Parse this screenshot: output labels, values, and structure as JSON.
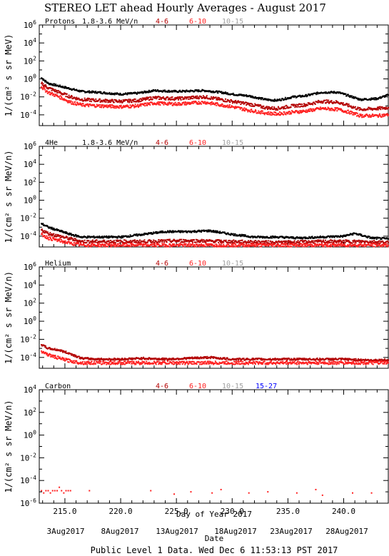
{
  "figure": {
    "title": "STEREO LET ahead Hourly Averages - August 2017",
    "x_axis_label": "Day of Year 2017",
    "date_axis_label": "Date",
    "date_ticks": [
      "3Aug2017",
      "8Aug2017",
      "13Aug2017",
      "18Aug2017",
      "23Aug2017",
      "28Aug2017"
    ],
    "footer": "Public Level 1 Data. Wed Dec  6 11:53:13 PST 2017"
  },
  "colors": {
    "c1": "#000000",
    "c2": "#b30000",
    "c3": "#ff2020",
    "c4": "#a0a0a0",
    "c5": "#0000ff"
  },
  "chart_data": [
    {
      "type": "scatter",
      "panel_label": "Protons",
      "ylabel": "1/(cm² s sr MeV)",
      "xlim": [
        212.7,
        244.0
      ],
      "ylim_log10": [
        -5.2,
        6
      ],
      "y_scale": "log",
      "x_ticks": [
        "215.0",
        "220.0",
        "225.0",
        "230.0",
        "235.0",
        "240.0"
      ],
      "y_ticks": [
        {
          "base": "10",
          "exp": "6"
        },
        {
          "base": "10",
          "exp": "4"
        },
        {
          "base": "10",
          "exp": "2"
        },
        {
          "base": "10",
          "exp": "0"
        },
        {
          "base": "10",
          "exp": "-2"
        },
        {
          "base": "10",
          "exp": "-4"
        }
      ],
      "series": [
        {
          "name": "1.8-3.6 MeV/n",
          "color": "#000000",
          "x": [
            212.9,
            213.5,
            214.5,
            215.5,
            216.5,
            218,
            220,
            221.5,
            223,
            225,
            227.5,
            229,
            230,
            231.5,
            233,
            234,
            235.5,
            236.5,
            238,
            239.5,
            240.5,
            241.5,
            243,
            244
          ],
          "log10y": [
            0.1,
            -0.5,
            -0.8,
            -1.1,
            -1.4,
            -1.5,
            -1.7,
            -1.6,
            -1.3,
            -1.4,
            -1.3,
            -1.5,
            -1.7,
            -1.9,
            -2.3,
            -2.4,
            -2.0,
            -1.9,
            -1.5,
            -1.5,
            -1.9,
            -2.3,
            -2.2,
            -1.8
          ]
        },
        {
          "name": "4-6",
          "color": "#b30000",
          "x": [
            212.9,
            213.5,
            214.5,
            215.5,
            216.5,
            218,
            220,
            221.5,
            223,
            225,
            227.5,
            229,
            230,
            231.5,
            233,
            234,
            235.5,
            236.5,
            238,
            239.5,
            240.5,
            241.5,
            243,
            244
          ],
          "log10y": [
            -0.5,
            -1.0,
            -1.5,
            -2.0,
            -2.3,
            -2.4,
            -2.5,
            -2.4,
            -2.1,
            -2.2,
            -2.0,
            -2.3,
            -2.5,
            -2.8,
            -3.2,
            -3.3,
            -3.0,
            -2.9,
            -2.5,
            -2.6,
            -3.0,
            -3.4,
            -3.3,
            -3.2
          ]
        },
        {
          "name": "6-10",
          "color": "#ff2020",
          "x": [
            212.9,
            213.5,
            214.5,
            215.5,
            216.5,
            218,
            220,
            221.5,
            223,
            225,
            227.5,
            229,
            230,
            231.5,
            233,
            234,
            235.5,
            236.5,
            238,
            239.5,
            240.5,
            241.5,
            243,
            244
          ],
          "log10y": [
            -0.9,
            -1.5,
            -2.0,
            -2.6,
            -2.9,
            -3.0,
            -3.1,
            -3.0,
            -2.7,
            -2.8,
            -2.6,
            -2.9,
            -3.1,
            -3.5,
            -3.8,
            -3.9,
            -3.7,
            -3.6,
            -3.3,
            -3.4,
            -3.7,
            -4.1,
            -4.1,
            -4.0
          ]
        },
        {
          "name": "10-15",
          "color": "#a0a0a0",
          "x": [],
          "log10y": []
        }
      ]
    },
    {
      "type": "scatter",
      "panel_label": "4He",
      "ylabel": "1/(cm² s sr MeV/n)",
      "xlim": [
        212.7,
        244.0
      ],
      "ylim_log10": [
        -5.2,
        6
      ],
      "y_scale": "log",
      "x_ticks": [
        "215.0",
        "220.0",
        "225.0",
        "230.0",
        "235.0",
        "240.0"
      ],
      "y_ticks": [
        {
          "base": "10",
          "exp": "6"
        },
        {
          "base": "10",
          "exp": "4"
        },
        {
          "base": "10",
          "exp": "2"
        },
        {
          "base": "10",
          "exp": "0"
        },
        {
          "base": "10",
          "exp": "-2"
        },
        {
          "base": "10",
          "exp": "-4"
        }
      ],
      "series": [
        {
          "name": "1.8-3.6 MeV/n",
          "color": "#000000",
          "x": [
            212.9,
            213.5,
            214.5,
            215.5,
            216.5,
            218,
            220,
            222,
            224,
            226,
            228,
            230,
            232,
            234,
            236,
            238,
            240,
            241,
            242.5,
            244
          ],
          "log10y": [
            -2.6,
            -3.0,
            -3.4,
            -3.8,
            -4.1,
            -4.1,
            -4.1,
            -3.8,
            -3.5,
            -3.5,
            -3.4,
            -3.8,
            -4.1,
            -4.1,
            -4.2,
            -4.1,
            -4.0,
            -3.7,
            -4.2,
            -4.3
          ]
        },
        {
          "name": "4-6",
          "color": "#b30000",
          "x": [
            212.9,
            213.5,
            214.5,
            215.5,
            216.5,
            218,
            222,
            226,
            230,
            234,
            238,
            242,
            244
          ],
          "log10y": [
            -3.3,
            -3.7,
            -4.0,
            -4.3,
            -4.6,
            -4.6,
            -4.6,
            -4.5,
            -4.6,
            -4.7,
            -4.6,
            -4.6,
            -4.7
          ]
        },
        {
          "name": "6-10",
          "color": "#ff2020",
          "x": [
            212.9,
            213.5,
            214.5,
            215.5,
            216.5,
            218,
            222,
            226,
            230,
            234,
            238,
            242,
            244
          ],
          "log10y": [
            -3.8,
            -4.2,
            -4.5,
            -4.8,
            -5.0,
            -5.0,
            -5.0,
            -5.0,
            -5.0,
            -5.0,
            -5.0,
            -5.0,
            -5.0
          ]
        },
        {
          "name": "10-15",
          "color": "#a0a0a0",
          "x": [],
          "log10y": []
        }
      ]
    },
    {
      "type": "scatter",
      "panel_label": "Helium",
      "ylabel": "1/(cm² s sr MeV/n)",
      "xlim": [
        212.7,
        244.0
      ],
      "ylim_log10": [
        -5.2,
        6
      ],
      "y_scale": "log",
      "x_ticks": [
        "215.0",
        "220.0",
        "225.0",
        "230.0",
        "235.0",
        "240.0"
      ],
      "y_ticks": [
        {
          "base": "10",
          "exp": "6"
        },
        {
          "base": "10",
          "exp": "4"
        },
        {
          "base": "10",
          "exp": "2"
        },
        {
          "base": "10",
          "exp": "0"
        },
        {
          "base": "10",
          "exp": "-2"
        },
        {
          "base": "10",
          "exp": "-4"
        }
      ],
      "series": [
        {
          "name": "4-6",
          "color": "#b30000",
          "x": [
            212.9,
            213.5,
            214.5,
            215.5,
            216.5,
            218,
            220,
            222,
            224,
            226,
            228,
            230,
            232,
            234,
            236,
            238,
            240,
            242,
            244
          ],
          "log10y": [
            -2.6,
            -3.0,
            -3.2,
            -3.6,
            -4.1,
            -4.2,
            -4.2,
            -4.1,
            -4.2,
            -4.1,
            -4.0,
            -4.2,
            -4.2,
            -4.2,
            -4.2,
            -4.2,
            -4.2,
            -4.3,
            -4.3
          ]
        },
        {
          "name": "6-10",
          "color": "#ff2020",
          "x": [
            212.9,
            213.5,
            214.5,
            215.5,
            216.5,
            218,
            222,
            226,
            230,
            234,
            238,
            242,
            244
          ],
          "log10y": [
            -3.3,
            -3.7,
            -4.1,
            -4.4,
            -4.6,
            -4.6,
            -4.6,
            -4.6,
            -4.6,
            -4.6,
            -4.6,
            -4.6,
            -4.6
          ]
        },
        {
          "name": "10-15",
          "color": "#a0a0a0",
          "x": [],
          "log10y": []
        }
      ]
    },
    {
      "type": "scatter",
      "panel_label": "Carbon",
      "ylabel": "1/(cm² s sr MeV/n)",
      "xlim": [
        212.7,
        244.0
      ],
      "ylim_log10": [
        -6,
        4
      ],
      "y_scale": "log",
      "x_ticks": [
        "215.0",
        "220.0",
        "225.0",
        "230.0",
        "235.0",
        "240.0"
      ],
      "y_ticks": [
        {
          "base": "10",
          "exp": "4"
        },
        {
          "base": "10",
          "exp": "2"
        },
        {
          "base": "10",
          "exp": "0"
        },
        {
          "base": "10",
          "exp": "-2"
        },
        {
          "base": "10",
          "exp": "-4"
        },
        {
          "base": "10",
          "exp": "-6"
        }
      ],
      "series": [
        {
          "name": "4-6",
          "color": "#b30000",
          "x": [],
          "log10y": []
        },
        {
          "name": "6-10",
          "color": "#ff2020",
          "x": [
            212.9,
            213.1,
            213.3,
            213.5,
            213.7,
            213.9,
            214.1,
            214.3,
            214.5,
            214.7,
            214.9,
            215.1,
            215.3,
            215.5,
            217.2,
            222.7,
            224.8,
            226.3,
            228.2,
            229.0,
            231.5,
            233.2,
            235.8,
            237.5,
            238.1,
            240.8,
            242.5
          ],
          "log10y": [
            -4.9,
            -5.1,
            -4.9,
            -4.9,
            -5.1,
            -4.9,
            -4.9,
            -4.9,
            -4.6,
            -4.9,
            -5.1,
            -4.9,
            -4.9,
            -4.9,
            -4.9,
            -4.9,
            -5.2,
            -5.0,
            -5.1,
            -4.8,
            -5.1,
            -5.0,
            -5.1,
            -4.8,
            -5.3,
            -5.1,
            -5.1
          ]
        },
        {
          "name": "10-15",
          "color": "#a0a0a0",
          "x": [],
          "log10y": []
        },
        {
          "name": "15-27",
          "color": "#0000ff",
          "x": [],
          "log10y": []
        }
      ]
    }
  ]
}
